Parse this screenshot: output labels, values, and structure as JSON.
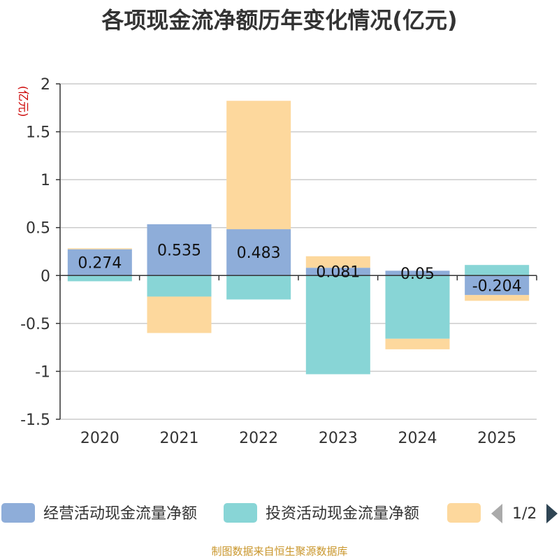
{
  "title": "各项现金流净额历年变化情况(亿元)",
  "footer": "制图数据来自恒生聚源数据库",
  "chart_data": {
    "type": "bar",
    "stacked": true,
    "title": "各项现金流净额历年变化情况(亿元)",
    "xlabel": "",
    "ylabel": "(亿元)",
    "ylim": [
      -1.5,
      2
    ],
    "yticks": [
      2,
      1.5,
      1,
      0.5,
      0,
      -0.5,
      -1,
      -1.5
    ],
    "ytick_labels": [
      "2",
      "1.5",
      "1",
      "0.5",
      "0",
      "-0.5",
      "-1",
      "-1.5"
    ],
    "categories": [
      "2020",
      "2021",
      "2022",
      "2023",
      "2024",
      "2025"
    ],
    "series": [
      {
        "name": "经营活动现金流量净额",
        "color": "#8eadd9",
        "values": [
          0.274,
          0.535,
          0.483,
          0.081,
          0.05,
          -0.204
        ],
        "labels": [
          "0.274",
          "0.535",
          "0.483",
          "0.081",
          "0.05",
          "-0.204"
        ]
      },
      {
        "name": "投资活动现金流量净额",
        "color": "#88d5d6",
        "values": [
          -0.06,
          -0.22,
          -0.25,
          -1.03,
          -0.66,
          0.11
        ]
      },
      {
        "name": "",
        "color": "#fdd89d",
        "values": [
          0.01,
          -0.38,
          1.34,
          0.12,
          -0.11,
          -0.06
        ]
      }
    ],
    "legend": {
      "placement": "bottom",
      "page": "1/2"
    }
  }
}
